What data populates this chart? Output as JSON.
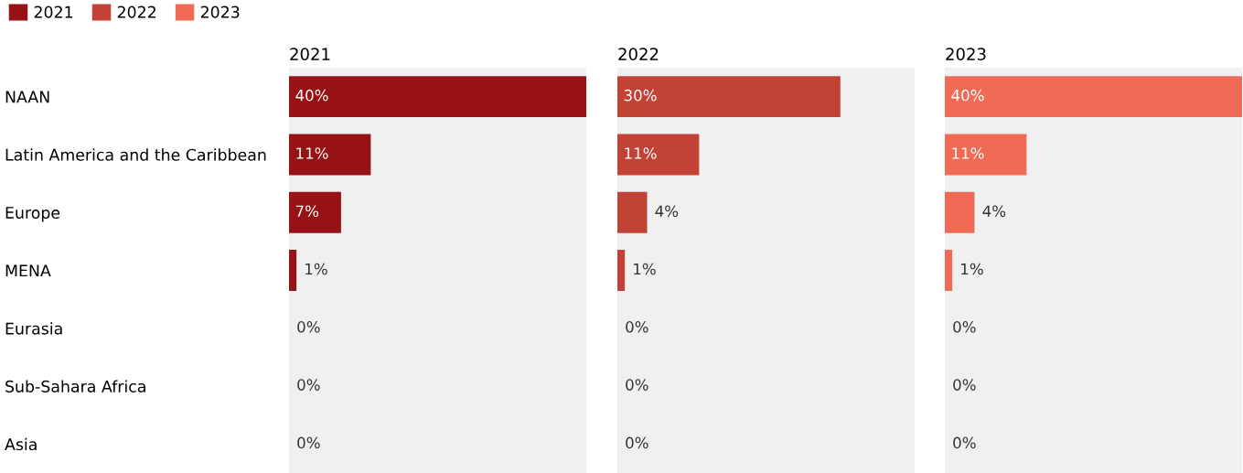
{
  "chart_data": [
    {
      "type": "bar",
      "orientation": "horizontal",
      "title": "2021",
      "categories": [
        "NAAN",
        "Latin America and the Caribbean",
        "Europe",
        "MENA",
        "Eurasia",
        "Sub-Sahara Africa",
        "Asia"
      ],
      "tick_labels": "y",
      "legend": "top left",
      "series": [
        {
          "name": "2021",
          "color": "#961215",
          "values": [
            40,
            11,
            7,
            1,
            0,
            0,
            0
          ],
          "value_labels": [
            "40%",
            "11%",
            "7%",
            "1%",
            "0%",
            "0%",
            "0%"
          ]
        }
      ]
    },
    {
      "type": "bar",
      "orientation": "horizontal",
      "title": "2022",
      "categories": [
        null,
        null,
        null,
        null,
        null,
        null,
        null
      ],
      "tick_labels": false,
      "legend": "top left",
      "series": [
        {
          "name": "2022",
          "color": "#c24236",
          "values": [
            30,
            11,
            4,
            1,
            0,
            0,
            0
          ],
          "value_labels": [
            "30%",
            "11%",
            "4%",
            "1%",
            "0%",
            "0%",
            "0%"
          ]
        }
      ]
    },
    {
      "type": "bar",
      "orientation": "horizontal",
      "title": "2023",
      "categories": [
        null,
        null,
        null,
        null,
        null,
        null,
        null
      ],
      "tick_labels": false,
      "legend": "top left",
      "series": [
        {
          "name": "2023",
          "color": "#ef6b56",
          "values": [
            40,
            11,
            4,
            1,
            0,
            0,
            0
          ],
          "value_labels": [
            "40%",
            "11%",
            "4%",
            "1%",
            "0%",
            "0%",
            "0%"
          ]
        }
      ]
    }
  ]
}
